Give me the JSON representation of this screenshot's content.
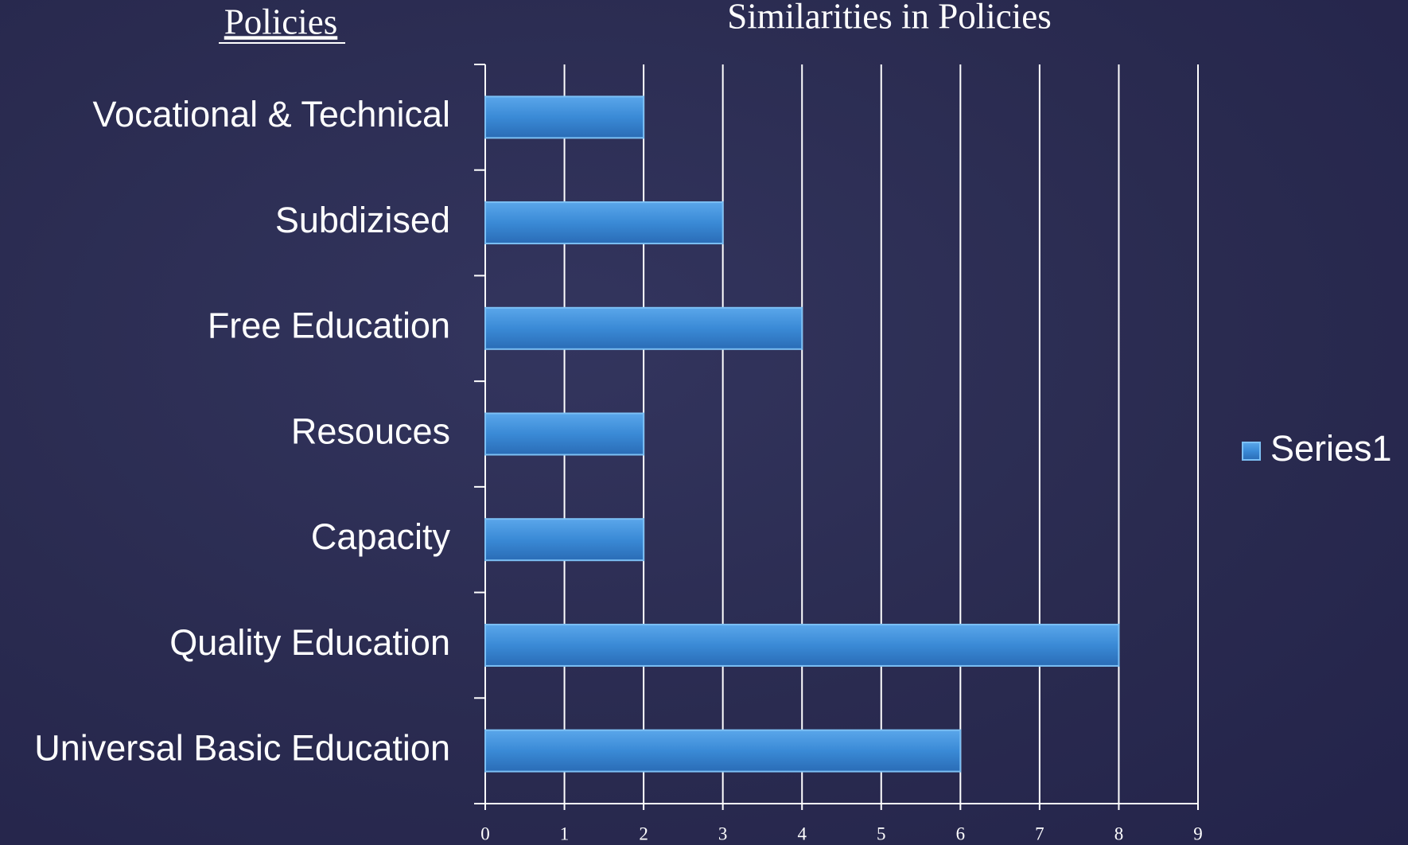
{
  "heading": "Policies",
  "chart_data": {
    "type": "bar",
    "orientation": "horizontal",
    "title": "Similarities in Policies",
    "categories": [
      "Vocational & Technical",
      "Subdizised",
      "Free Education",
      "Resouces",
      "Capacity",
      "Quality Education",
      "Universal Basic Education"
    ],
    "series": [
      {
        "name": "Series1",
        "color": "#3a8ad6",
        "values": [
          2,
          3,
          4,
          2,
          2,
          8,
          6
        ]
      }
    ],
    "xlim": [
      0,
      9
    ],
    "xticks": [
      0,
      1,
      2,
      3,
      4,
      5,
      6,
      7,
      8,
      9
    ],
    "grid": true,
    "legend": "right"
  }
}
